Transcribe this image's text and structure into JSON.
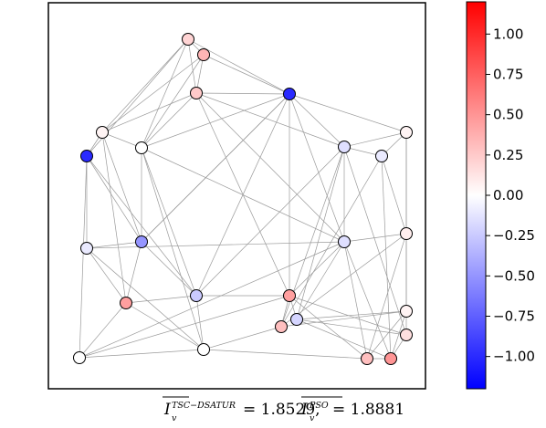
{
  "colorbar": {
    "min": -1.2,
    "max": 1.2,
    "ticks": [
      {
        "value": 1.0,
        "label": "1.00"
      },
      {
        "value": 0.75,
        "label": "0.75"
      },
      {
        "value": 0.5,
        "label": "0.50"
      },
      {
        "value": 0.25,
        "label": "0.25"
      },
      {
        "value": 0.0,
        "label": "0.00"
      },
      {
        "value": -0.25,
        "label": "−0.25"
      },
      {
        "value": -0.5,
        "label": "−0.50"
      },
      {
        "value": -0.75,
        "label": "−0.75"
      },
      {
        "value": -1.0,
        "label": "−1.00"
      }
    ],
    "colormap": "bwr",
    "low_color": "#0000ff",
    "mid_color": "#ffffff",
    "high_color": "#ff0000"
  },
  "graph": {
    "node_values": [
      0.2,
      0.35,
      0.25,
      -1.0,
      0.05,
      -1.0,
      0.0,
      -0.15,
      -0.1,
      0.05,
      -0.1,
      -0.5,
      -0.15,
      0.08,
      0.45,
      -0.25,
      0.45,
      -0.2,
      0.3,
      0.05,
      0.0,
      0.0,
      0.15,
      0.5,
      0.3
    ],
    "edge_color": "#9a9a9a",
    "node_edge_color": "#000000"
  },
  "caption": {
    "term1_base": "I",
    "term1_sub": "v",
    "term1_sup": "TSC−DSATUR",
    "term1_value": "= 1.8529,",
    "term2_base": "I",
    "term2_sub": "v",
    "term2_sup": "PSO",
    "term2_value": "= 1.8881"
  }
}
